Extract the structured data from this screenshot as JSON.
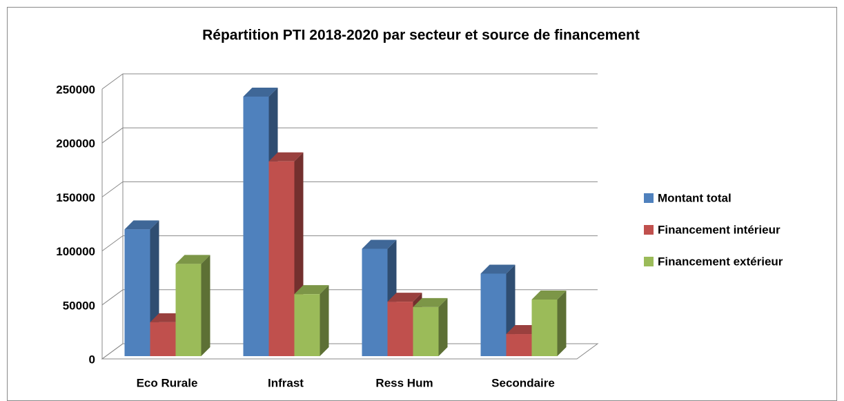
{
  "chart_data": {
    "type": "bar3d",
    "title": "Répartition PTI 2018-2020 par secteur et source de financement",
    "categories": [
      "Eco Rurale",
      "Infrast",
      "Ress Hum",
      "Secondaire"
    ],
    "series": [
      {
        "name": "Montant total",
        "color": "#4f81bd",
        "values": [
          120000,
          243000,
          102000,
          79000
        ]
      },
      {
        "name": "Financement intérieur",
        "color": "#c0504d",
        "values": [
          34000,
          183000,
          53000,
          23000
        ]
      },
      {
        "name": "Financement extérieur",
        "color": "#9bbb59",
        "values": [
          88000,
          60000,
          48000,
          55000
        ]
      }
    ],
    "ylim": [
      0,
      250000
    ],
    "yticks": [
      0,
      50000,
      100000,
      150000,
      200000,
      250000
    ],
    "grid": true,
    "legend": "right"
  }
}
